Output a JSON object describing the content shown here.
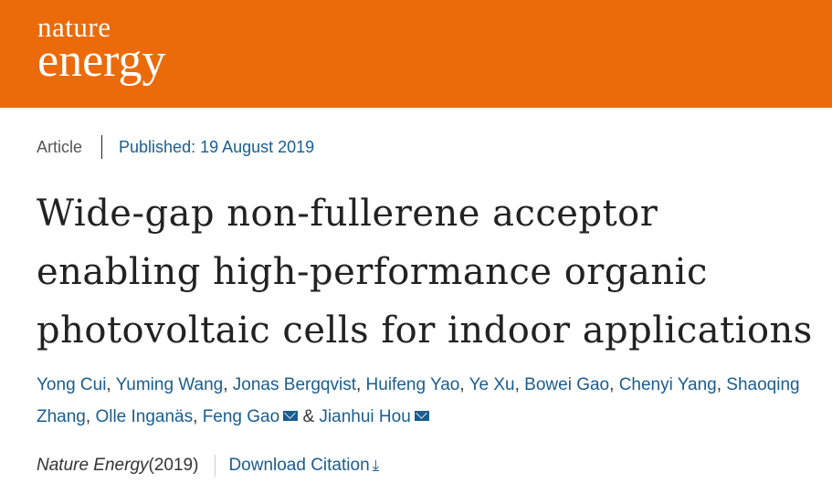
{
  "header": {
    "logo_line1": "nature",
    "logo_line2": "energy",
    "brand_color": "#eb6b0b"
  },
  "meta": {
    "type": "Article",
    "published": "Published: 19 August 2019"
  },
  "title": "Wide-gap non-fullerene acceptor enabling high-performance organic photovoltaic cells for indoor applications",
  "authors": [
    {
      "name": "Yong Cui",
      "sep": ", "
    },
    {
      "name": "Yuming Wang",
      "sep": ", "
    },
    {
      "name": "Jonas Bergqvist",
      "sep": ", "
    },
    {
      "name": "Huifeng Yao",
      "sep": ", "
    },
    {
      "name": "Ye Xu",
      "sep": ", "
    },
    {
      "name": "Bowei Gao",
      "sep": ", "
    },
    {
      "name": "Chenyi Yang",
      "sep": ", "
    },
    {
      "name": "Shaoqing Zhang",
      "sep": ", "
    },
    {
      "name": "Olle Inganäs",
      "sep": ", "
    },
    {
      "name": "Feng Gao",
      "sep": " & ",
      "email": true
    },
    {
      "name": "Jianhui Hou",
      "sep": "",
      "email": true
    }
  ],
  "citation": {
    "journal": "Nature Energy",
    "year": " (2019)",
    "download_label": "Download Citation",
    "download_icon": "⤓"
  },
  "colors": {
    "link": "#1a5d8f",
    "text": "#222222"
  }
}
